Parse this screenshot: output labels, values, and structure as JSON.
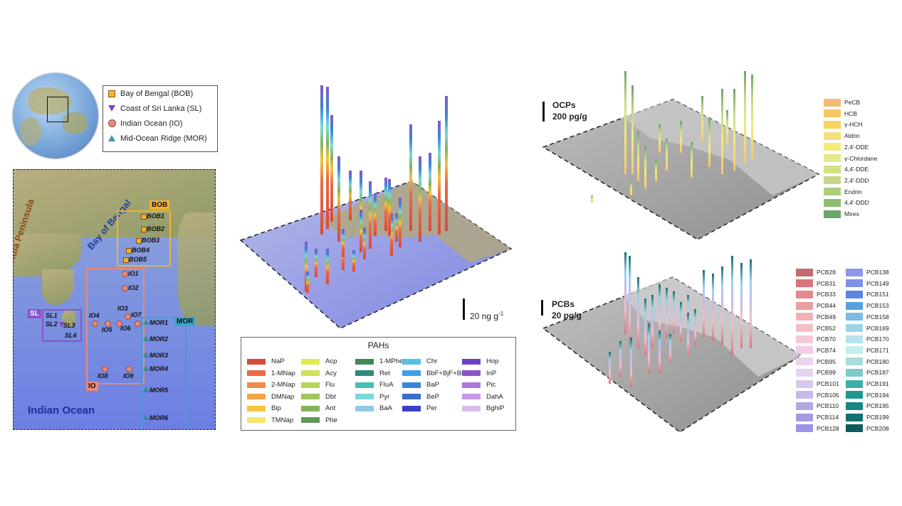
{
  "legend": {
    "items": [
      {
        "label": "Bay of Bengal (BOB)",
        "shape": "square",
        "color": "#f2b233"
      },
      {
        "label": "Coast of Sri Lanka (SL)",
        "shape": "triangle-down",
        "color": "#7a4bb8"
      },
      {
        "label": "Indian Ocean (IO)",
        "shape": "circle",
        "color": "#e68a78"
      },
      {
        "label": "Mid-Ocean Ridge (MOR)",
        "shape": "triangle-up",
        "color": "#3a9aa5"
      }
    ]
  },
  "map": {
    "peninsula": "India Peninsula",
    "bay": "Bay of Bengal",
    "ocean": "Indian Ocean",
    "regions": {
      "bob": "BOB",
      "sl": "SL",
      "io": "IO",
      "mor": "MOR"
    },
    "bob_stations": [
      "BOB1",
      "BOB2",
      "BOB3",
      "BOB4",
      "BOB5"
    ],
    "sl_stations": [
      "SL1",
      "SL2",
      "SL3",
      "SL4"
    ],
    "io_stations": [
      "IO1",
      "IO2",
      "IO3",
      "IO4",
      "IO5",
      "IO6",
      "IO7",
      "IO8",
      "IO9"
    ],
    "mor_stations": [
      "MOR1",
      "MOR2",
      "MOR3",
      "MOR4",
      "MOR5",
      "MOR6"
    ]
  },
  "pah_panel": {
    "scale_label": "20 ng g",
    "scale_sup": "-1",
    "legend_title": "PAHs",
    "items": [
      {
        "label": "NaP",
        "color": "#d94a3a"
      },
      {
        "label": "1-MNap",
        "color": "#ea6a45"
      },
      {
        "label": "2-MNap",
        "color": "#f08a4c"
      },
      {
        "label": "DMNap",
        "color": "#f2a54a"
      },
      {
        "label": "Bip",
        "color": "#f5c43c"
      },
      {
        "label": "TMNap",
        "color": "#f7e66a"
      },
      {
        "label": "Acp",
        "color": "#e0ea4c"
      },
      {
        "label": "Acy",
        "color": "#cfe05a"
      },
      {
        "label": "Flu",
        "color": "#b7d45a"
      },
      {
        "label": "Dbt",
        "color": "#a3c45e"
      },
      {
        "label": "Ant",
        "color": "#86b25a"
      },
      {
        "label": "Phe",
        "color": "#5f9a5a"
      },
      {
        "label": "1-MPhe",
        "color": "#3f8a55"
      },
      {
        "label": "Ret",
        "color": "#2f8a7a"
      },
      {
        "label": "FluA",
        "color": "#45bfb6"
      },
      {
        "label": "Pyr",
        "color": "#7ad9d6"
      },
      {
        "label": "BaA",
        "color": "#8fcbe3"
      },
      {
        "label": "Chr",
        "color": "#55bfe8"
      },
      {
        "label": "BbF+BjF+BkF",
        "color": "#3ba0e4"
      },
      {
        "label": "BaP",
        "color": "#3a86d8"
      },
      {
        "label": "BeP",
        "color": "#3f6ec8"
      },
      {
        "label": "Per",
        "color": "#3b3fc8"
      },
      {
        "label": "Hop",
        "color": "#6f3fc8"
      },
      {
        "label": "InP",
        "color": "#8a55c8"
      },
      {
        "label": "Pic",
        "color": "#b077da"
      },
      {
        "label": "DahA",
        "color": "#c49be0"
      },
      {
        "label": "BghiP",
        "color": "#d8bdee"
      }
    ]
  },
  "ocp_panel": {
    "scale_title": "OCPs",
    "scale_value": "200 pg/g",
    "items": [
      {
        "label": "PeCB",
        "color": "#f5b977"
      },
      {
        "label": "HCB",
        "color": "#f7c766"
      },
      {
        "label": "γ-HCH",
        "color": "#f8d45a"
      },
      {
        "label": "Aldrin",
        "color": "#f6df7f"
      },
      {
        "label": "2,4'-DDE",
        "color": "#f3ea78"
      },
      {
        "label": "γ-Chlordane",
        "color": "#e4ea8c"
      },
      {
        "label": "4,4'-DDE",
        "color": "#d7df86"
      },
      {
        "label": "2,4'-DDD",
        "color": "#c6d98a"
      },
      {
        "label": "Endrin",
        "color": "#afcd7c"
      },
      {
        "label": "4,4'-DDD",
        "color": "#8fbd72"
      },
      {
        "label": "Mirex",
        "color": "#6aa56a"
      }
    ]
  },
  "pcb_panel": {
    "scale_title": "PCBs",
    "scale_value": "20 pg/g",
    "items": [
      {
        "label": "PCB28",
        "color": "#c46a6f"
      },
      {
        "label": "PCB31",
        "color": "#d9747a"
      },
      {
        "label": "PCB33",
        "color": "#e58a8c"
      },
      {
        "label": "PCB44",
        "color": "#ec9da0"
      },
      {
        "label": "PCB49",
        "color": "#f0b1b6"
      },
      {
        "label": "PCB52",
        "color": "#f2bfc9"
      },
      {
        "label": "PCB70",
        "color": "#f3c9d8"
      },
      {
        "label": "PCB74",
        "color": "#f2cce6"
      },
      {
        "label": "PCB95",
        "color": "#ecd4ef"
      },
      {
        "label": "PCB99",
        "color": "#e4d4f2"
      },
      {
        "label": "PCB101",
        "color": "#d5c8ef"
      },
      {
        "label": "PCB105",
        "color": "#c6b9ea"
      },
      {
        "label": "PCB110",
        "color": "#b3a8e6"
      },
      {
        "label": "PCB114",
        "color": "#a49be3"
      },
      {
        "label": "PCB128",
        "color": "#9a93e6"
      },
      {
        "label": "PCB138",
        "color": "#8f96e8"
      },
      {
        "label": "PCB149",
        "color": "#7f91e8"
      },
      {
        "label": "PCB151",
        "color": "#5c86e0"
      },
      {
        "label": "PCB153",
        "color": "#5aa0dc"
      },
      {
        "label": "PCB158",
        "color": "#7cbbe4"
      },
      {
        "label": "PCB169",
        "color": "#9cd4ea"
      },
      {
        "label": "PCB170",
        "color": "#b7e3ed"
      },
      {
        "label": "PCB171",
        "color": "#c6ecef"
      },
      {
        "label": "PCB180",
        "color": "#a9dcdc"
      },
      {
        "label": "PCB187",
        "color": "#7dcac8"
      },
      {
        "label": "PCB191",
        "color": "#3eaea8"
      },
      {
        "label": "PCB194",
        "color": "#1f9890"
      },
      {
        "label": "PCB195",
        "color": "#1a8582"
      },
      {
        "label": "PCB199",
        "color": "#146f70"
      },
      {
        "label": "PCB208",
        "color": "#0f5a5e"
      }
    ]
  }
}
